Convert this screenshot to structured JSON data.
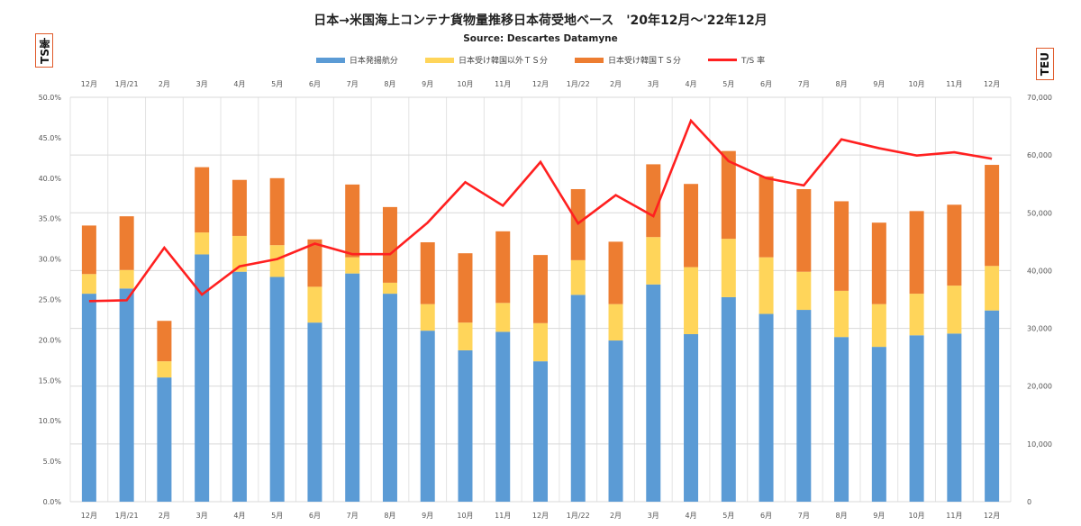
{
  "chart_data": {
    "type": "bar",
    "title": "日本→米国海上コンテナ貨物量推移日本荷受地ベース　'20年12月～'22年12月",
    "subtitle": "Source: Descartes Datamyne",
    "left_axis_label": "TS率",
    "right_axis_label": "TEU",
    "categories": [
      "12月",
      "1月/21",
      "2月",
      "3月",
      "4月",
      "5月",
      "6月",
      "7月",
      "8月",
      "9月",
      "10月",
      "11月",
      "12月",
      "1月/22",
      "2月",
      "3月",
      "4月",
      "5月",
      "6月",
      "7月",
      "8月",
      "9月",
      "10月",
      "11月",
      "12月"
    ],
    "left_ylim": [
      0,
      50
    ],
    "left_ticks": [
      "0.0%",
      "5.0%",
      "10.0%",
      "15.0%",
      "20.0%",
      "25.0%",
      "30.0%",
      "35.0%",
      "40.0%",
      "45.0%",
      "50.0%"
    ],
    "left_tick_values": [
      0,
      5,
      10,
      15,
      20,
      25,
      30,
      35,
      40,
      45,
      50
    ],
    "right_ylim": [
      0,
      70000
    ],
    "right_ticks": [
      "0",
      "10,000",
      "20,000",
      "30,000",
      "40,000",
      "50,000",
      "60,000",
      "70,000"
    ],
    "right_tick_values": [
      0,
      10000,
      20000,
      30000,
      40000,
      50000,
      60000,
      70000
    ],
    "series": [
      {
        "name": "日本発揚航分",
        "type": "bar",
        "axis": "right",
        "color": "#5b9bd5",
        "values": [
          36000,
          36900,
          21500,
          42800,
          39800,
          38900,
          31000,
          39500,
          36000,
          29600,
          26200,
          29400,
          24300,
          35800,
          27900,
          37600,
          29000,
          35400,
          32500,
          33200,
          28500,
          26800,
          28800,
          29100,
          33100
        ]
      },
      {
        "name": "日本受け韓国以外ＴＳ分",
        "type": "bar",
        "axis": "right",
        "color": "#ffd55a",
        "values": [
          3400,
          3200,
          2800,
          3800,
          6200,
          5500,
          6200,
          2800,
          1900,
          4600,
          4800,
          5000,
          6600,
          6000,
          6300,
          8200,
          11600,
          10100,
          9800,
          6600,
          8000,
          7400,
          7200,
          8300,
          7700
        ]
      },
      {
        "name": "日本受け韓国ＴＳ分",
        "type": "bar",
        "axis": "right",
        "color": "#ed7d31",
        "values": [
          8400,
          9300,
          7000,
          11300,
          9700,
          11600,
          8200,
          12600,
          13100,
          10700,
          12000,
          12400,
          11800,
          12300,
          10800,
          12600,
          14400,
          15200,
          14000,
          14300,
          15500,
          14100,
          14300,
          14000,
          17500
        ]
      },
      {
        "name": "T/S 率",
        "type": "line",
        "axis": "left",
        "color": "#ff2020",
        "values": [
          24.8,
          24.9,
          31.4,
          25.6,
          29.1,
          30.0,
          31.9,
          30.6,
          30.6,
          34.5,
          39.5,
          36.6,
          42.0,
          34.4,
          37.9,
          35.3,
          47.1,
          42.1,
          40.0,
          39.1,
          44.8,
          43.7,
          42.8,
          43.2,
          42.4
        ]
      }
    ],
    "grid": "vertical-and-horizontal",
    "legend_position": "top-center"
  }
}
